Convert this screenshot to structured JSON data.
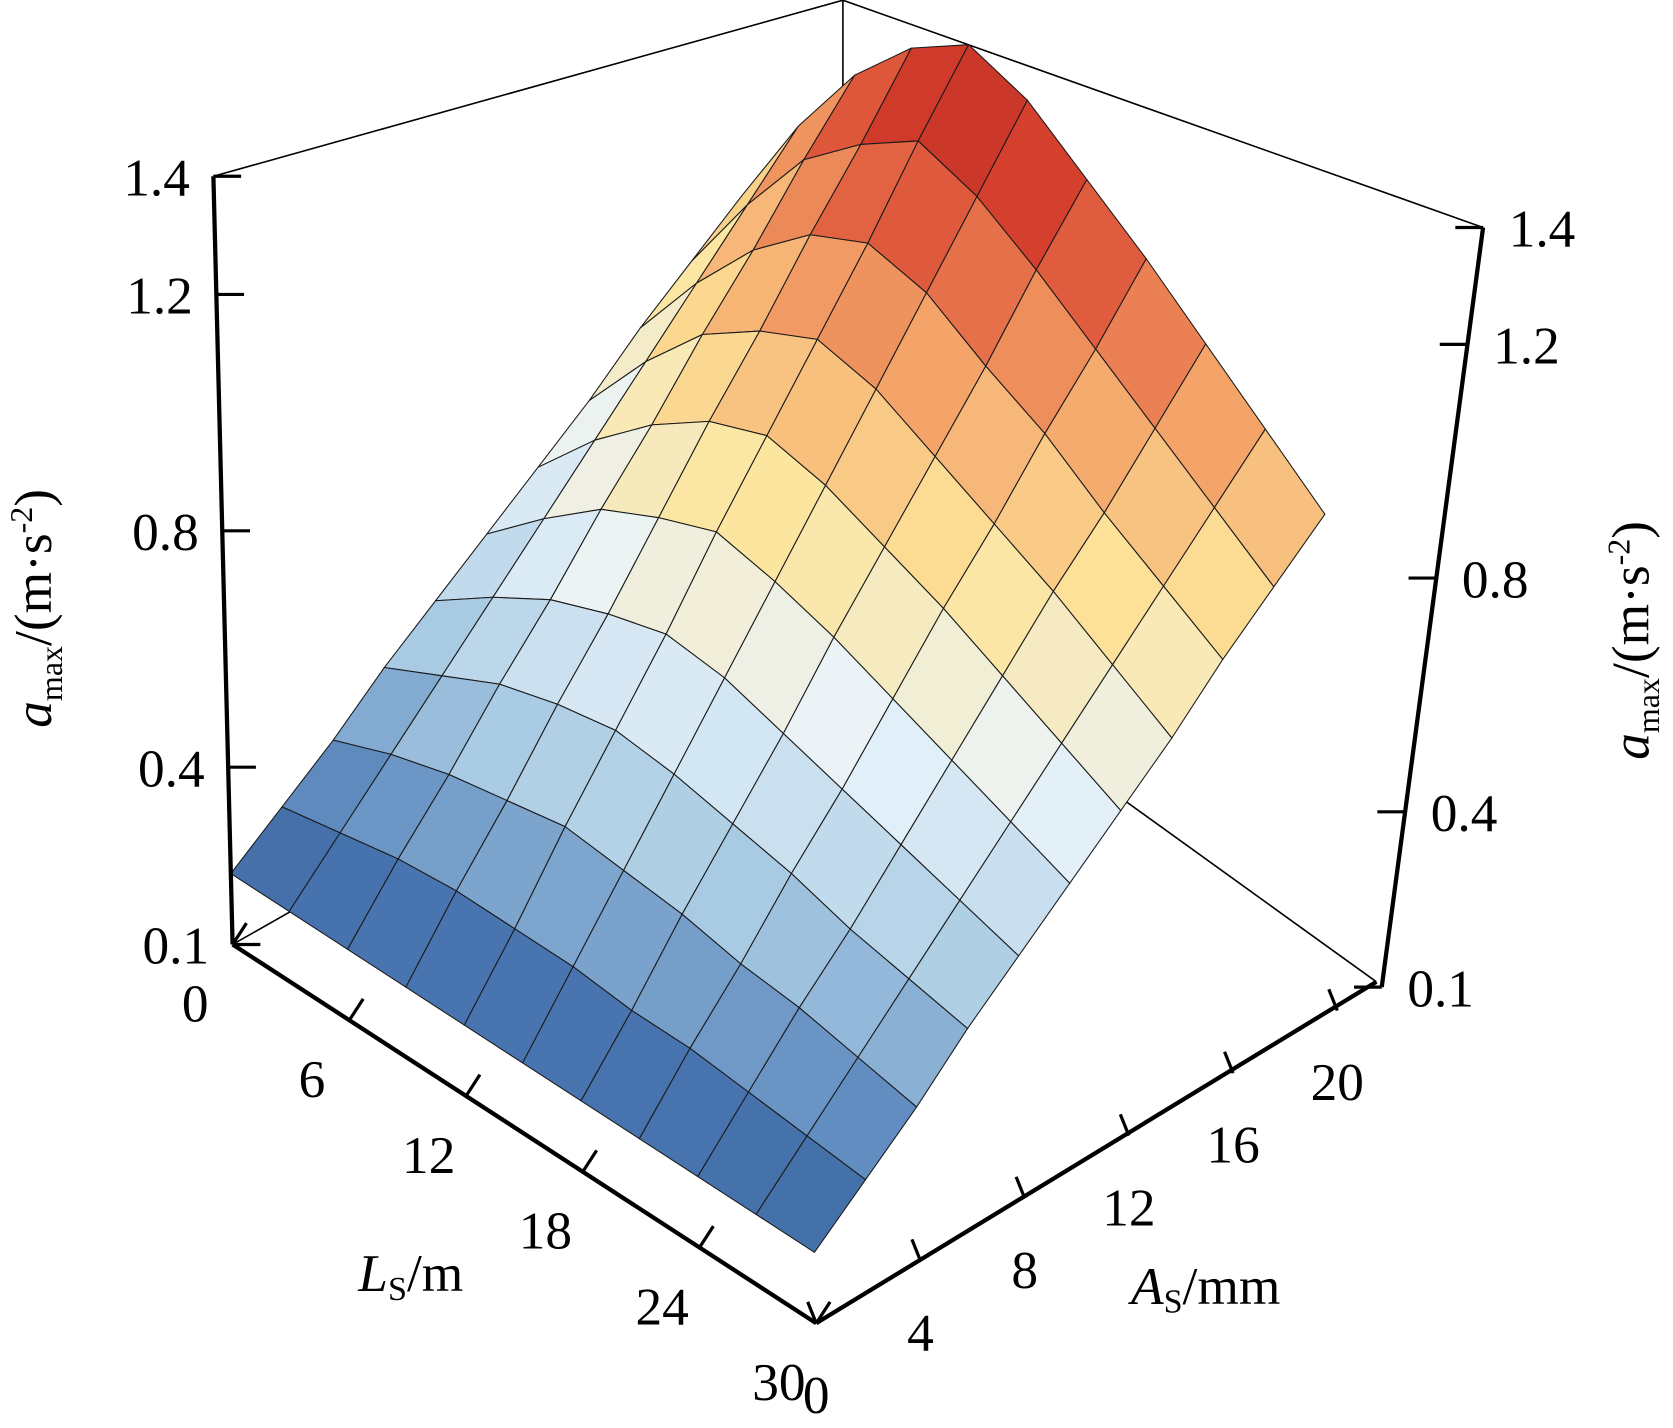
{
  "chart_data": {
    "type": "surface",
    "xlabel": [
      "L",
      "S",
      "/m"
    ],
    "ylabel": [
      "A",
      "S",
      "/mm"
    ],
    "zlabel": [
      "a",
      "max",
      "/(m·s",
      "-2",
      ")"
    ],
    "x": [
      0,
      3,
      6,
      9,
      12,
      15,
      18,
      21,
      24,
      27,
      30
    ],
    "y": [
      0,
      2,
      4,
      6,
      8,
      10,
      12,
      14,
      16,
      18,
      20
    ],
    "z": [
      [
        0.22,
        0.28,
        0.34,
        0.41,
        0.47,
        0.53,
        0.59,
        0.65,
        0.72,
        0.78,
        0.84
      ],
      [
        0.22,
        0.3,
        0.38,
        0.46,
        0.54,
        0.62,
        0.7,
        0.78,
        0.86,
        0.94,
        1.02
      ],
      [
        0.22,
        0.32,
        0.41,
        0.51,
        0.6,
        0.7,
        0.79,
        0.89,
        0.98,
        1.08,
        1.17
      ],
      [
        0.22,
        0.33,
        0.43,
        0.54,
        0.64,
        0.75,
        0.86,
        0.96,
        1.07,
        1.17,
        1.28
      ],
      [
        0.22,
        0.33,
        0.45,
        0.56,
        0.67,
        0.79,
        0.9,
        1.01,
        1.12,
        1.24,
        1.35
      ],
      [
        0.22,
        0.33,
        0.44,
        0.55,
        0.66,
        0.77,
        0.88,
        0.99,
        1.1,
        1.21,
        1.32
      ],
      [
        0.22,
        0.32,
        0.43,
        0.53,
        0.63,
        0.74,
        0.84,
        0.94,
        1.04,
        1.15,
        1.25
      ],
      [
        0.22,
        0.32,
        0.41,
        0.51,
        0.6,
        0.7,
        0.8,
        0.89,
        0.99,
        1.08,
        1.18
      ],
      [
        0.22,
        0.31,
        0.4,
        0.48,
        0.57,
        0.66,
        0.75,
        0.84,
        0.92,
        1.01,
        1.1
      ],
      [
        0.22,
        0.3,
        0.38,
        0.46,
        0.54,
        0.62,
        0.7,
        0.78,
        0.86,
        0.94,
        1.02
      ],
      [
        0.22,
        0.29,
        0.36,
        0.44,
        0.51,
        0.58,
        0.65,
        0.72,
        0.8,
        0.87,
        0.94
      ]
    ],
    "xlim": [
      0,
      30
    ],
    "ylim": [
      0,
      21.5
    ],
    "zlim": [
      0.1,
      1.4
    ],
    "xticks": [
      0,
      6,
      12,
      18,
      24,
      30
    ],
    "yticks": [
      0,
      4,
      8,
      12,
      16,
      20
    ],
    "zticks": [
      0.1,
      0.4,
      0.8,
      1.2,
      1.4
    ],
    "colormap": [
      "#2a4877",
      "#4a78b4",
      "#a9cbe3",
      "#eaf4fb",
      "#fde49a",
      "#f3a066",
      "#d8432f",
      "#b3201c"
    ]
  }
}
